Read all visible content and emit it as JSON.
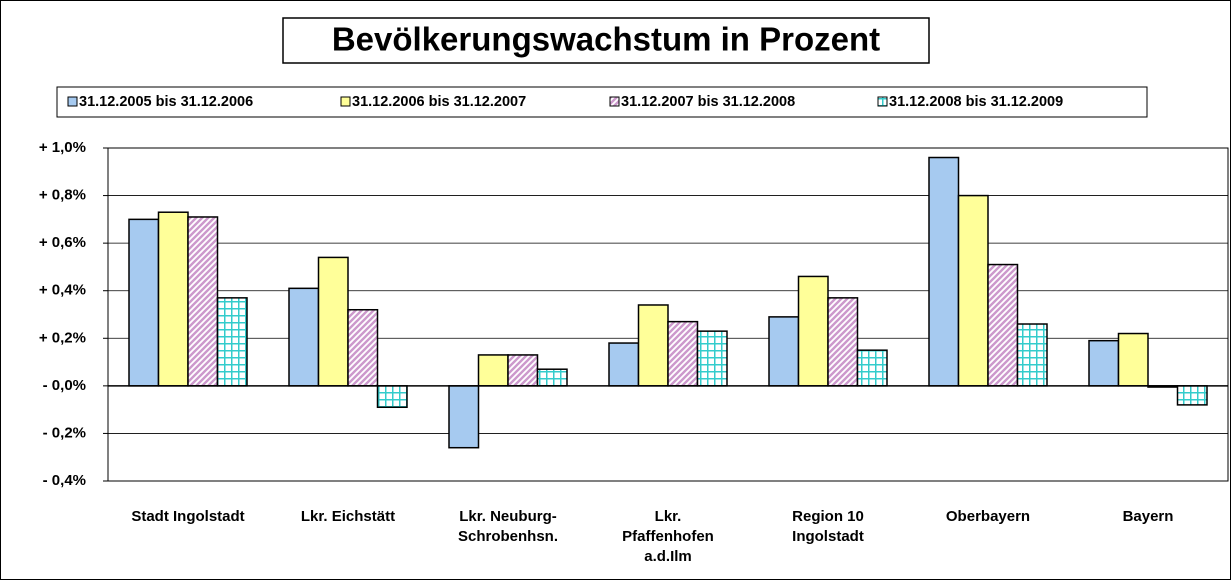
{
  "chart_data": {
    "type": "bar",
    "title": "Bevölkerungswachstum in Prozent",
    "categories": [
      "Stadt Ingolstadt",
      "Lkr. Eichstätt",
      "Lkr. Neuburg-\nSchrobenhsn.",
      "Lkr.\nPfaffenhofen\na.d.Ilm",
      "Region 10\nIngolstadt",
      "Oberbayern",
      "Bayern"
    ],
    "series": [
      {
        "name": "31.12.2005 bis 31.12.2006",
        "color": "#a6caf0",
        "pattern": "solid",
        "values": [
          0.7,
          0.41,
          -0.26,
          0.18,
          0.29,
          0.96,
          0.19
        ]
      },
      {
        "name": "31.12.2006 bis 31.12.2007",
        "color": "#ffff99",
        "pattern": "solid",
        "values": [
          0.73,
          0.54,
          0.13,
          0.34,
          0.46,
          0.8,
          0.22
        ]
      },
      {
        "name": "31.12.2007 bis 31.12.2008",
        "color": "#cc99cc",
        "pattern": "diagonal",
        "values": [
          0.71,
          0.32,
          0.13,
          0.27,
          0.37,
          0.51,
          -0.005
        ]
      },
      {
        "name": "31.12.2008 bis 31.12.2009",
        "color": "#33cccc",
        "pattern": "grid",
        "values": [
          0.37,
          -0.09,
          0.07,
          0.23,
          0.15,
          0.26,
          -0.08
        ]
      }
    ],
    "ylim": [
      -0.4,
      1.0
    ],
    "yticks": [
      {
        "value": -0.4,
        "label": "- 0,4%"
      },
      {
        "value": -0.2,
        "label": "- 0,2%"
      },
      {
        "value": 0.0,
        "label": "- 0,0%"
      },
      {
        "value": 0.2,
        "label": "+ 0,2%"
      },
      {
        "value": 0.4,
        "label": "+ 0,4%"
      },
      {
        "value": 0.6,
        "label": "+ 0,6%"
      },
      {
        "value": 0.8,
        "label": "+ 0,8%"
      },
      {
        "value": 1.0,
        "label": "+ 1,0%"
      }
    ],
    "grid": true
  }
}
